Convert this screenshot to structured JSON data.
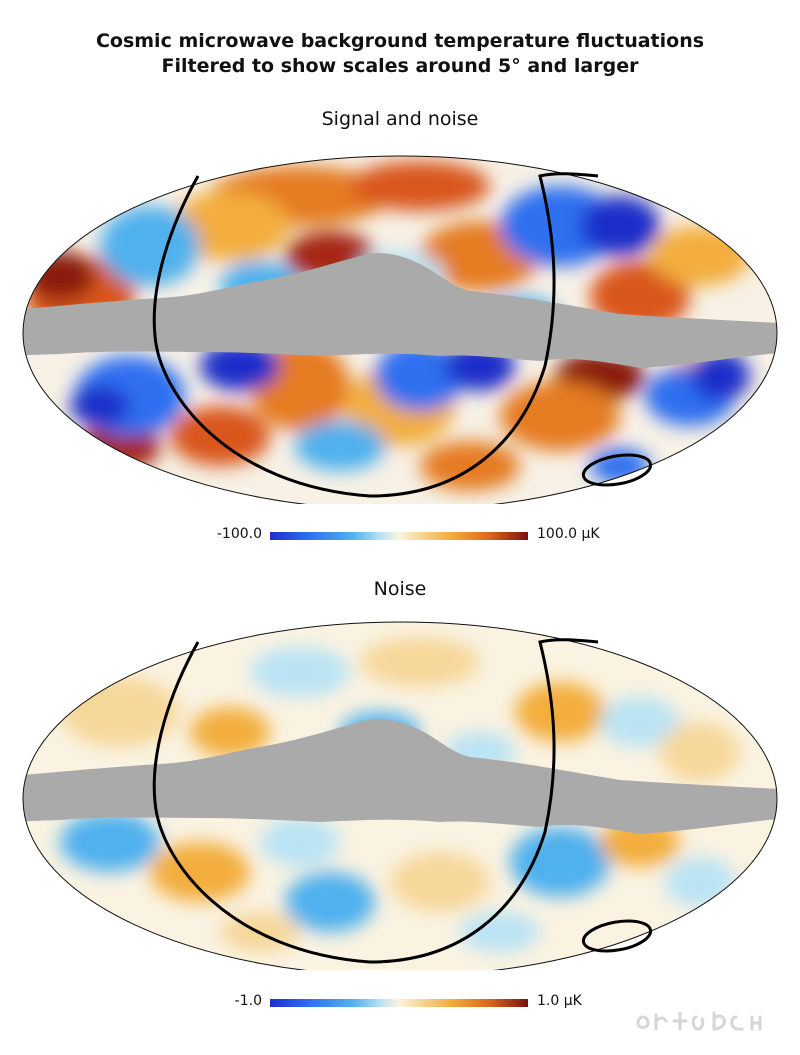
{
  "title_line1": "Cosmic microwave background temperature fluctuations",
  "title_line2": "Filtered to show scales around 5° and larger",
  "panels": [
    {
      "title": "Signal and noise",
      "colorbar_min": "-100.0",
      "colorbar_max": "100.0 μK"
    },
    {
      "title": "Noise",
      "colorbar_min": "-1.0",
      "colorbar_max": "1.0 μK"
    }
  ],
  "colors": {
    "cold": "#1c2fc9",
    "neutral": "#fbf4df",
    "hot": "#7a1010",
    "mask": "#aaaaaa"
  }
}
